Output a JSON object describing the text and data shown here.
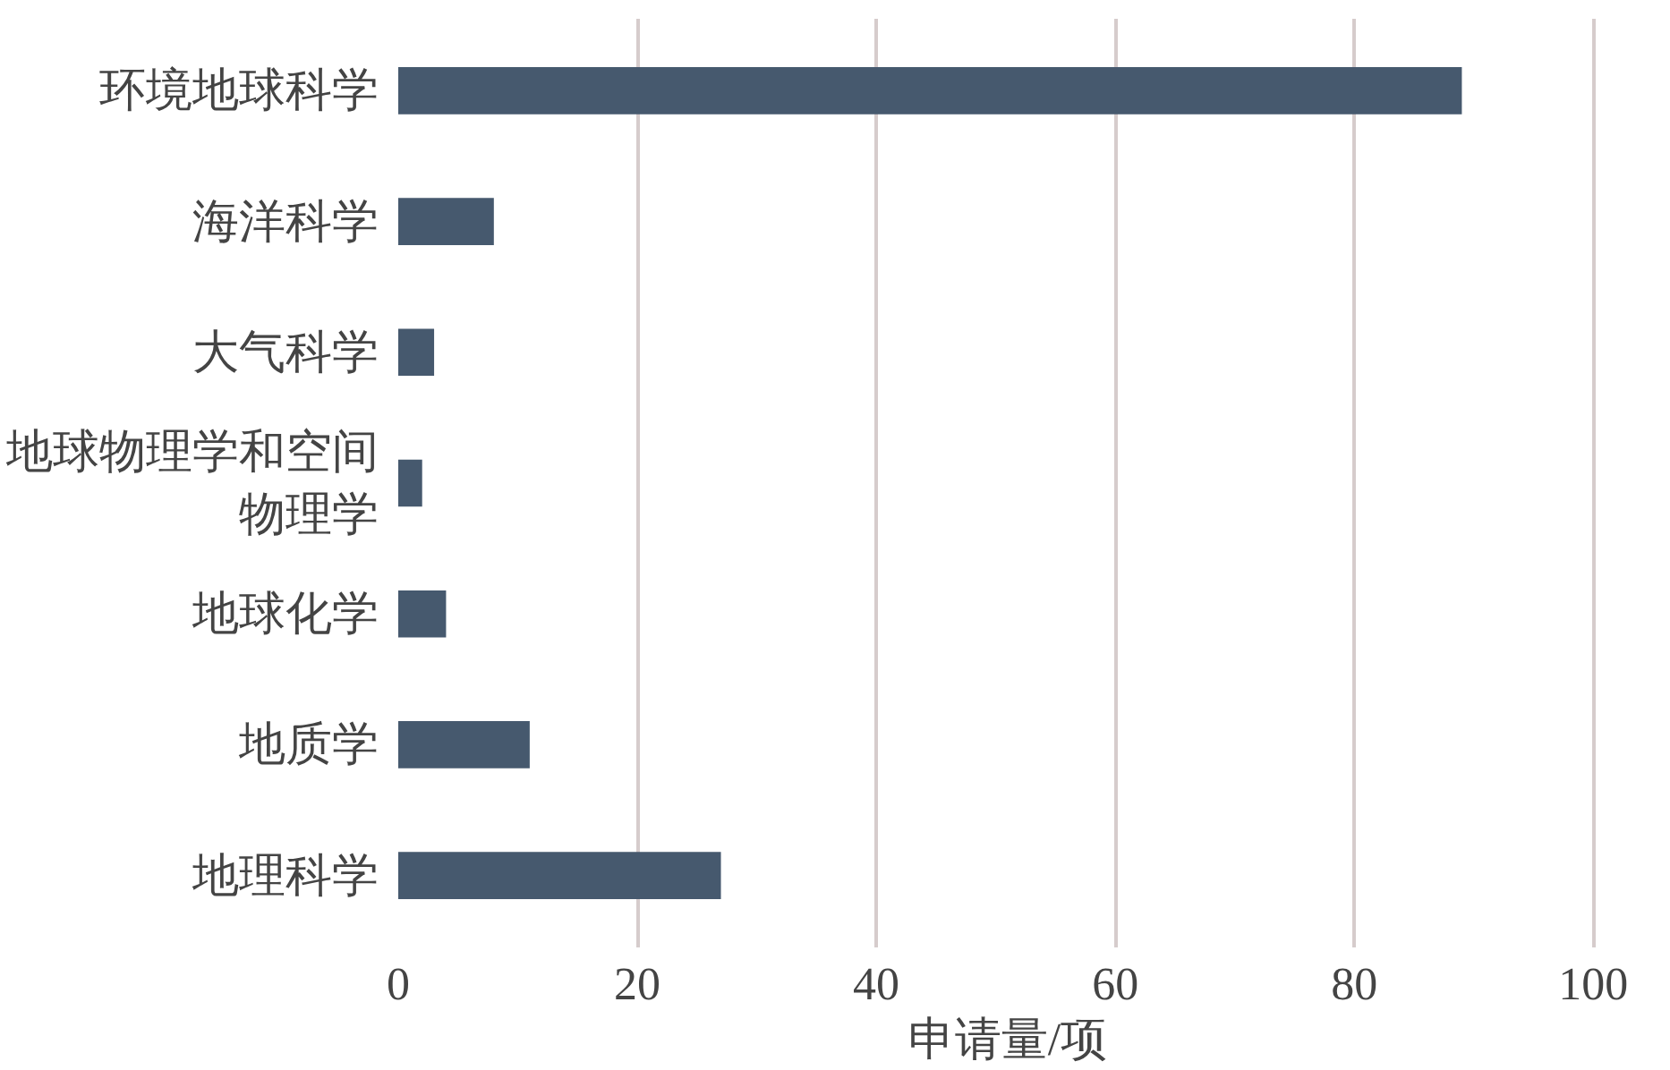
{
  "chart_data": {
    "type": "bar",
    "orientation": "horizontal",
    "xlabel": "申请量/项",
    "categories": [
      "环境地球科学",
      "海洋科学",
      "大气科学",
      "地球物理学和空间物理学",
      "地球化学",
      "地质学",
      "地理科学"
    ],
    "values": [
      89,
      8,
      3,
      2,
      4,
      11,
      27
    ],
    "color": "#46596e",
    "xlim": [
      0,
      100
    ],
    "xticks": [
      0,
      20,
      40,
      60,
      80,
      100
    ],
    "grid": "x"
  }
}
